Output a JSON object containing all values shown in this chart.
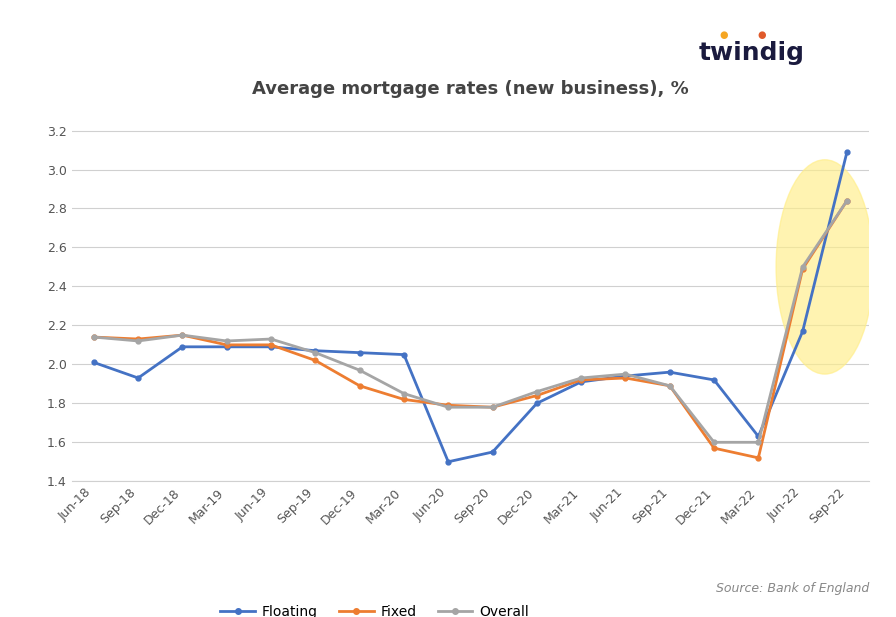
{
  "title": "Average mortgage rates (new business), %",
  "source": "Source: Bank of England",
  "x_labels": [
    "Jun-18",
    "Sep-18",
    "Dec-18",
    "Mar-19",
    "Jun-19",
    "Sep-19",
    "Dec-19",
    "Mar-20",
    "Jun-20",
    "Sep-20",
    "Dec-20",
    "Mar-21",
    "Jun-21",
    "Sep-21",
    "Dec-21",
    "Mar-22",
    "Jun-22",
    "Sep-22"
  ],
  "floating": [
    2.01,
    1.93,
    2.09,
    2.09,
    2.09,
    2.07,
    2.06,
    2.05,
    1.5,
    1.55,
    1.8,
    1.91,
    1.94,
    1.96,
    1.92,
    1.63,
    2.17,
    3.09
  ],
  "fixed": [
    2.14,
    2.13,
    2.15,
    2.1,
    2.1,
    2.02,
    1.89,
    1.82,
    1.79,
    1.78,
    1.84,
    1.92,
    1.93,
    1.89,
    1.57,
    1.52,
    2.49,
    2.84
  ],
  "overall": [
    2.14,
    2.12,
    2.15,
    2.12,
    2.13,
    2.06,
    1.97,
    1.85,
    1.78,
    1.78,
    1.86,
    1.93,
    1.95,
    1.89,
    1.6,
    1.6,
    2.5,
    2.84
  ],
  "floating_color": "#4472C4",
  "fixed_color": "#ED7D31",
  "overall_color": "#A5A5A5",
  "highlight_color": "#FFEE88",
  "highlight_alpha": 0.65,
  "ylim": [
    1.4,
    3.3
  ],
  "yticks": [
    1.4,
    1.6,
    1.8,
    2.0,
    2.2,
    2.4,
    2.6,
    2.8,
    3.0,
    3.2
  ],
  "background_color": "#FFFFFF",
  "grid_color": "#D0D0D0",
  "line_width": 2.0,
  "twindig_color": "#1a1a3e",
  "dot_orange": "#F5A623",
  "dot_red": "#E05A2B"
}
